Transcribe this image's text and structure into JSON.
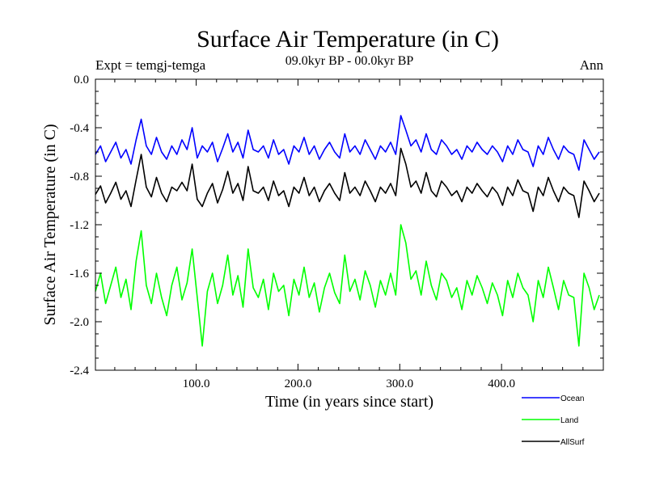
{
  "chart_data": {
    "type": "line",
    "title": "Surface Air Temperature (in C)",
    "subtitle": "09.0kyr BP - 00.0kyr BP",
    "experiment_label": "Expt = temgj-temga",
    "season_label": "Ann",
    "xlabel": "Time (in years since start)",
    "ylabel": "Surface Air Temperature (in C)",
    "xlim": [
      1,
      500
    ],
    "ylim": [
      -2.4,
      0.0
    ],
    "x_ticks": [
      100,
      200,
      300,
      400
    ],
    "x_tick_labels": [
      "100.0",
      "200.0",
      "300.0",
      "400.0"
    ],
    "y_ticks": [
      0.0,
      -0.4,
      -0.8,
      -1.2,
      -1.6,
      -2.0,
      -2.4
    ],
    "y_tick_labels": [
      "0.0",
      "-0.4",
      "-0.8",
      "-1.2",
      "-1.6",
      "-2.0",
      "-2.4"
    ],
    "grid": false,
    "legend_position": "bottom-right, below plot",
    "series": [
      {
        "name": "Ocean",
        "color": "#0000ff",
        "x_start": 1,
        "x_step": 5,
        "values": [
          -0.62,
          -0.55,
          -0.68,
          -0.6,
          -0.52,
          -0.65,
          -0.58,
          -0.7,
          -0.5,
          -0.33,
          -0.55,
          -0.62,
          -0.48,
          -0.6,
          -0.66,
          -0.55,
          -0.62,
          -0.5,
          -0.58,
          -0.4,
          -0.65,
          -0.55,
          -0.6,
          -0.52,
          -0.68,
          -0.57,
          -0.45,
          -0.6,
          -0.52,
          -0.65,
          -0.42,
          -0.58,
          -0.6,
          -0.55,
          -0.65,
          -0.5,
          -0.62,
          -0.58,
          -0.7,
          -0.55,
          -0.6,
          -0.48,
          -0.62,
          -0.55,
          -0.66,
          -0.58,
          -0.52,
          -0.6,
          -0.65,
          -0.45,
          -0.6,
          -0.55,
          -0.62,
          -0.5,
          -0.58,
          -0.66,
          -0.55,
          -0.6,
          -0.52,
          -0.62,
          -0.3,
          -0.42,
          -0.55,
          -0.5,
          -0.6,
          -0.45,
          -0.58,
          -0.62,
          -0.5,
          -0.55,
          -0.62,
          -0.58,
          -0.66,
          -0.55,
          -0.6,
          -0.52,
          -0.58,
          -0.62,
          -0.55,
          -0.6,
          -0.68,
          -0.55,
          -0.62,
          -0.5,
          -0.58,
          -0.6,
          -0.72,
          -0.55,
          -0.62,
          -0.48,
          -0.58,
          -0.66,
          -0.55,
          -0.6,
          -0.62,
          -0.75,
          -0.5,
          -0.58,
          -0.66,
          -0.6
        ]
      },
      {
        "name": "Land",
        "color": "#00ff00",
        "x_start": 1,
        "x_step": 5,
        "values": [
          -1.75,
          -1.6,
          -1.85,
          -1.7,
          -1.55,
          -1.8,
          -1.65,
          -1.9,
          -1.5,
          -1.25,
          -1.7,
          -1.85,
          -1.6,
          -1.8,
          -1.95,
          -1.7,
          -1.55,
          -1.82,
          -1.68,
          -1.4,
          -1.8,
          -2.2,
          -1.75,
          -1.6,
          -1.85,
          -1.7,
          -1.45,
          -1.78,
          -1.62,
          -1.88,
          -1.4,
          -1.72,
          -1.8,
          -1.65,
          -1.9,
          -1.6,
          -1.75,
          -1.7,
          -1.95,
          -1.65,
          -1.78,
          -1.55,
          -1.8,
          -1.68,
          -1.92,
          -1.72,
          -1.6,
          -1.76,
          -1.85,
          -1.45,
          -1.75,
          -1.65,
          -1.82,
          -1.58,
          -1.7,
          -1.88,
          -1.66,
          -1.78,
          -1.6,
          -1.78,
          -1.2,
          -1.35,
          -1.65,
          -1.58,
          -1.78,
          -1.5,
          -1.7,
          -1.82,
          -1.6,
          -1.66,
          -1.8,
          -1.72,
          -1.9,
          -1.66,
          -1.78,
          -1.62,
          -1.72,
          -1.85,
          -1.68,
          -1.78,
          -1.95,
          -1.66,
          -1.8,
          -1.6,
          -1.72,
          -1.78,
          -2.0,
          -1.66,
          -1.8,
          -1.55,
          -1.72,
          -1.9,
          -1.66,
          -1.78,
          -1.8,
          -2.2,
          -1.6,
          -1.72,
          -1.9,
          -1.78
        ]
      },
      {
        "name": "AllSurf",
        "color": "#000000",
        "x_start": 1,
        "x_step": 5,
        "values": [
          -0.95,
          -0.88,
          -1.02,
          -0.94,
          -0.85,
          -0.99,
          -0.92,
          -1.05,
          -0.83,
          -0.62,
          -0.89,
          -0.97,
          -0.81,
          -0.94,
          -1.01,
          -0.89,
          -0.92,
          -0.85,
          -0.92,
          -0.7,
          -0.99,
          -1.05,
          -0.94,
          -0.86,
          -1.02,
          -0.91,
          -0.76,
          -0.94,
          -0.86,
          -1.0,
          -0.72,
          -0.92,
          -0.94,
          -0.89,
          -1.0,
          -0.84,
          -0.96,
          -0.92,
          -1.05,
          -0.89,
          -0.94,
          -0.81,
          -0.96,
          -0.89,
          -1.01,
          -0.92,
          -0.86,
          -0.94,
          -1.0,
          -0.77,
          -0.94,
          -0.89,
          -0.96,
          -0.84,
          -0.92,
          -1.01,
          -0.89,
          -0.94,
          -0.86,
          -0.96,
          -0.57,
          -0.7,
          -0.89,
          -0.84,
          -0.94,
          -0.77,
          -0.92,
          -0.97,
          -0.84,
          -0.89,
          -0.96,
          -0.92,
          -1.01,
          -0.89,
          -0.94,
          -0.86,
          -0.92,
          -0.97,
          -0.89,
          -0.94,
          -1.04,
          -0.89,
          -0.96,
          -0.83,
          -0.92,
          -0.94,
          -1.09,
          -0.89,
          -0.96,
          -0.81,
          -0.92,
          -1.01,
          -0.89,
          -0.94,
          -0.96,
          -1.14,
          -0.84,
          -0.92,
          -1.01,
          -0.94
        ]
      }
    ]
  }
}
